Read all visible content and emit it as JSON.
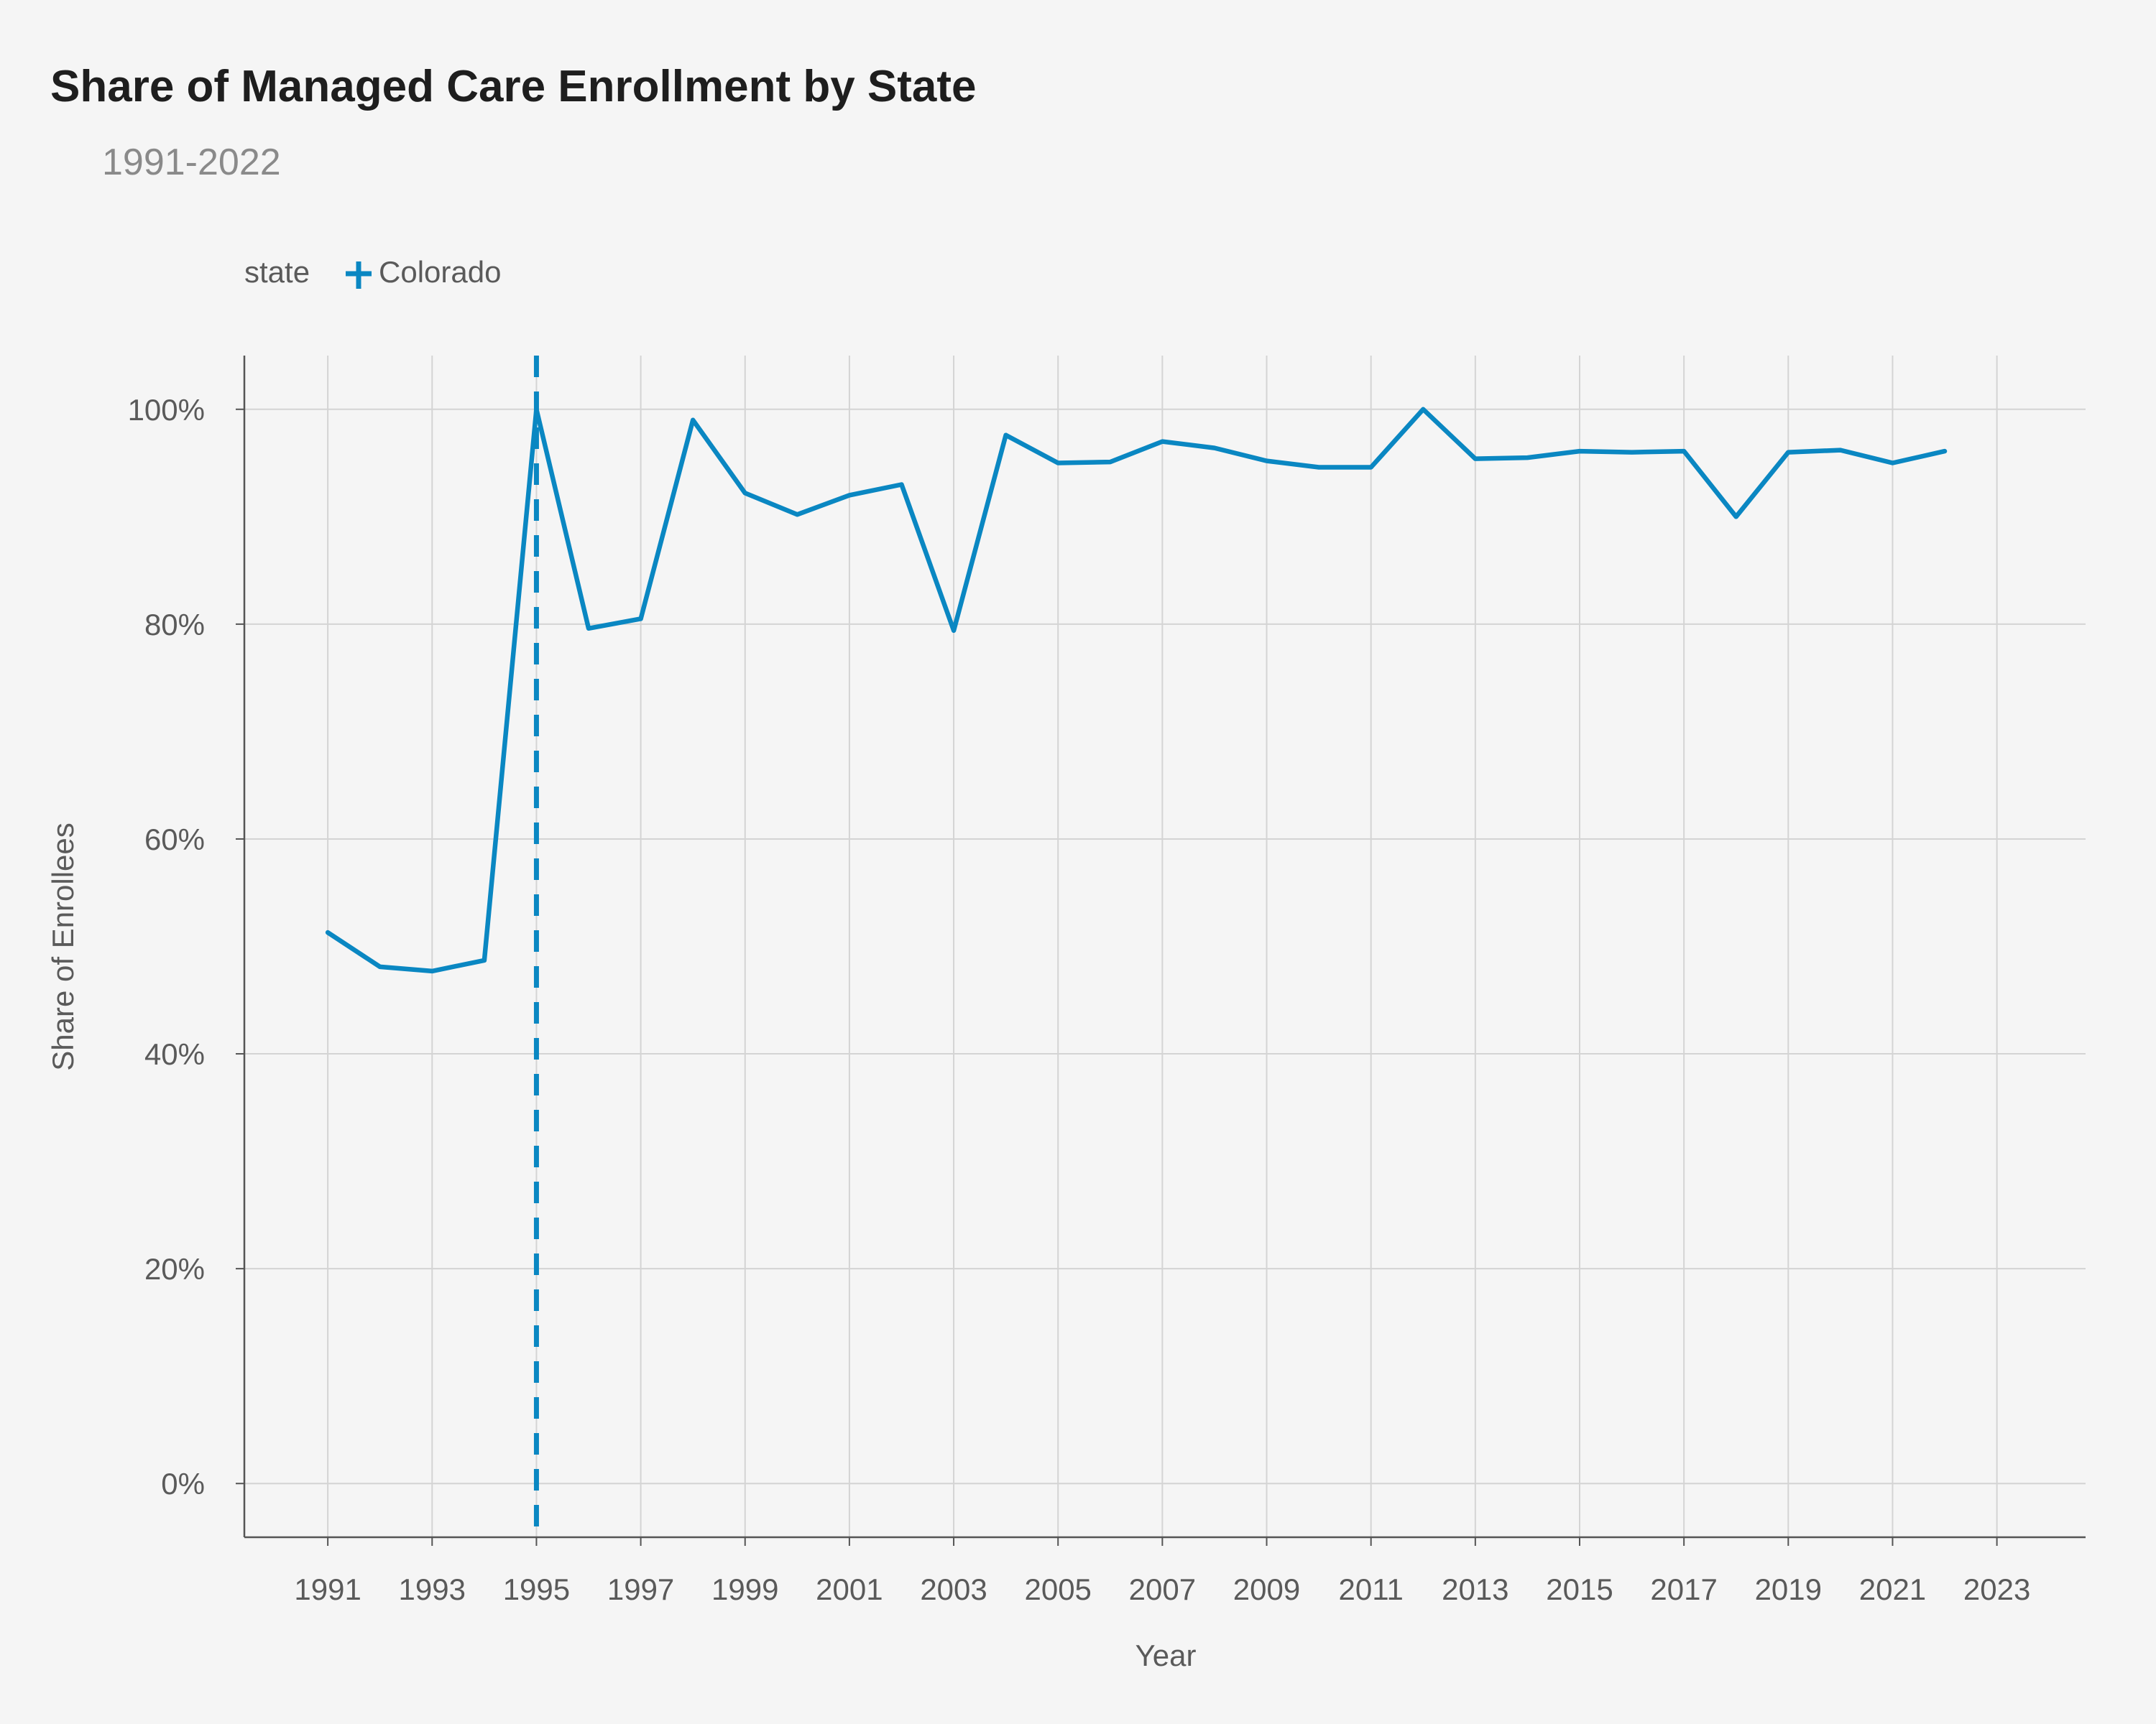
{
  "chart_data": {
    "type": "line",
    "title": "Share of Managed Care Enrollment by State",
    "subtitle": "1991-2022",
    "xlabel": "Year",
    "ylabel": "Share of Enrollees",
    "xlim": [
      1989.4,
      2024.7
    ],
    "ylim": [
      -5,
      105
    ],
    "x_ticks": [
      1991,
      1993,
      1995,
      1997,
      1999,
      2001,
      2003,
      2005,
      2007,
      2009,
      2011,
      2013,
      2015,
      2017,
      2019,
      2021,
      2023
    ],
    "x_tick_labels": [
      "1991",
      "1993",
      "1995",
      "1997",
      "1999",
      "2001",
      "2003",
      "2005",
      "2007",
      "2009",
      "2011",
      "2013",
      "2015",
      "2017",
      "2019",
      "2021",
      "2023"
    ],
    "y_ticks": [
      0,
      20,
      40,
      60,
      80,
      100
    ],
    "y_tick_labels": [
      "0%",
      "20%",
      "40%",
      "60%",
      "80%",
      "100%"
    ],
    "grid": true,
    "legend": {
      "title": "state",
      "placement": "top-left",
      "entries": [
        "Colorado"
      ]
    },
    "series": [
      {
        "name": "Colorado",
        "color": "#0a87c2",
        "x": [
          1991,
          1992,
          1993,
          1994,
          1995,
          1996,
          1997,
          1998,
          1999,
          2000,
          2001,
          2002,
          2003,
          2004,
          2005,
          2006,
          2007,
          2008,
          2009,
          2010,
          2011,
          2012,
          2013,
          2014,
          2015,
          2016,
          2017,
          2018,
          2019,
          2020,
          2021,
          2022
        ],
        "values": [
          51.3,
          48.1,
          47.7,
          48.7,
          100.0,
          79.6,
          80.5,
          99.0,
          92.2,
          90.2,
          92.0,
          93.0,
          79.4,
          97.6,
          95.0,
          95.1,
          97.0,
          96.4,
          95.2,
          94.6,
          94.6,
          100.0,
          95.4,
          95.5,
          96.1,
          96.0,
          96.1,
          90.0,
          96.0,
          96.2,
          95.0,
          96.1
        ]
      }
    ],
    "reference_lines": [
      {
        "axis": "x",
        "value": 1995,
        "style": "dashed",
        "color": "#0a87c2"
      }
    ]
  }
}
